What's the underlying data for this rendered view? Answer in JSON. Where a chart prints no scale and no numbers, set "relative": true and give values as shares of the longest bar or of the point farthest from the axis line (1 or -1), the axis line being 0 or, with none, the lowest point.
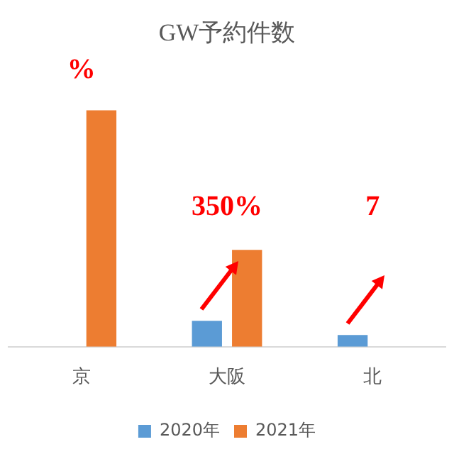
{
  "chart_data": {
    "type": "bar",
    "title": "GW予約件数",
    "categories": [
      "京",
      "大阪",
      "北"
    ],
    "relative": true,
    "series": [
      {
        "name": "2020年",
        "color": "#5b9bd5",
        "values": [
          null,
          0.11,
          0.05
        ]
      },
      {
        "name": "2021年",
        "color": "#ed7d31",
        "values": [
          1,
          0.41,
          null
        ]
      }
    ],
    "annotations": [
      "%",
      "350%",
      "7"
    ],
    "legend": "bottom",
    "grid": false
  }
}
